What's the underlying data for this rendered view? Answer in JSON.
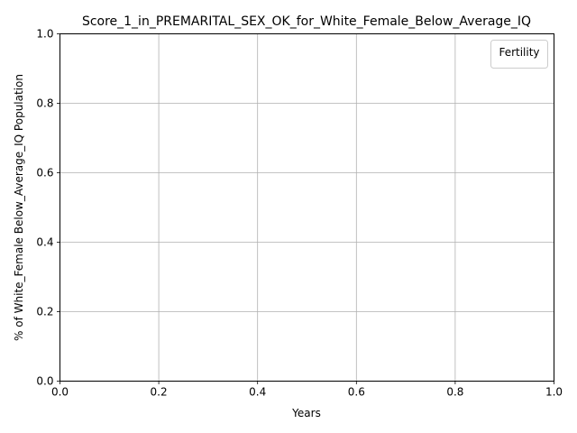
{
  "chart_data": {
    "type": "line",
    "title": "Score_1_in_PREMARITAL_SEX_OK_for_White_Female_Below_Average_IQ",
    "xlabel": "Years",
    "ylabel": "% of White_Female Below_Average_IQ Population",
    "xlim": [
      0.0,
      1.0
    ],
    "ylim": [
      0.0,
      1.0
    ],
    "xticks": [
      0.0,
      0.2,
      0.4,
      0.6,
      0.8,
      1.0
    ],
    "yticks": [
      0.0,
      0.2,
      0.4,
      0.6,
      0.8,
      1.0
    ],
    "xtick_labels": [
      "0.0",
      "0.2",
      "0.4",
      "0.6",
      "0.8",
      "1.0"
    ],
    "ytick_labels": [
      "0.0",
      "0.2",
      "0.4",
      "0.6",
      "0.8",
      "1.0"
    ],
    "grid": true,
    "legend": {
      "title": "Fertility",
      "placement": "top-right",
      "entries": []
    },
    "series": []
  }
}
